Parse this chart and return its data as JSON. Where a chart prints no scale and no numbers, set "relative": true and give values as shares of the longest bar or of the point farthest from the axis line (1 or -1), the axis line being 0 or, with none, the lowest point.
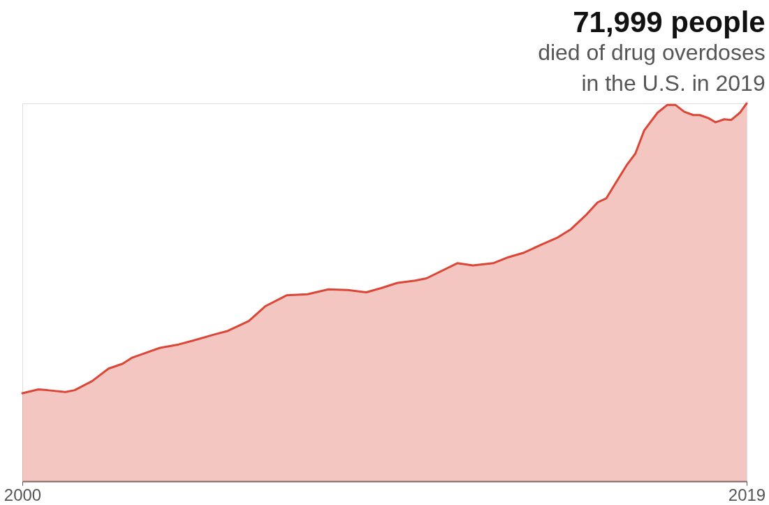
{
  "chart_data": {
    "type": "area",
    "title": "71,999 people",
    "subtitle": "died of drug overdoses\nin the U.S. in 2019",
    "relative": true,
    "tick_labels": "x",
    "x": [
      2000.0,
      2000.42,
      2000.66,
      2001.13,
      2001.37,
      2001.83,
      2002.26,
      2002.63,
      2002.88,
      2003.24,
      2003.61,
      2004.1,
      2004.47,
      2005.02,
      2005.39,
      2005.94,
      2006.37,
      2006.93,
      2007.48,
      2008.03,
      2008.55,
      2009.02,
      2009.41,
      2009.84,
      2010.3,
      2010.6,
      2011.41,
      2011.82,
      2012.35,
      2012.75,
      2013.16,
      2013.63,
      2014.04,
      2014.39,
      2014.8,
      2015.09,
      2015.32,
      2015.55,
      2015.85,
      2016.08,
      2016.31,
      2016.66,
      2016.92,
      2017.13,
      2017.36,
      2017.6,
      2017.77,
      2018.0,
      2018.18,
      2018.41,
      2018.59,
      2018.82,
      2019.0
    ],
    "xlim": [
      2000,
      2019
    ],
    "xticks": [
      2000,
      2019
    ],
    "series": [
      {
        "color": "#dc4637",
        "values": [
          0.233,
          0.243,
          0.241,
          0.236,
          0.241,
          0.265,
          0.298,
          0.311,
          0.327,
          0.34,
          0.353,
          0.362,
          0.372,
          0.388,
          0.398,
          0.424,
          0.463,
          0.492,
          0.495,
          0.508,
          0.506,
          0.5,
          0.511,
          0.525,
          0.531,
          0.537,
          0.577,
          0.571,
          0.577,
          0.593,
          0.605,
          0.627,
          0.645,
          0.667,
          0.706,
          0.738,
          0.749,
          0.787,
          0.836,
          0.867,
          0.928,
          0.975,
          0.996,
          0.996,
          0.978,
          0.969,
          0.969,
          0.961,
          0.95,
          0.958,
          0.956,
          0.975,
          1.0
        ]
      }
    ]
  }
}
